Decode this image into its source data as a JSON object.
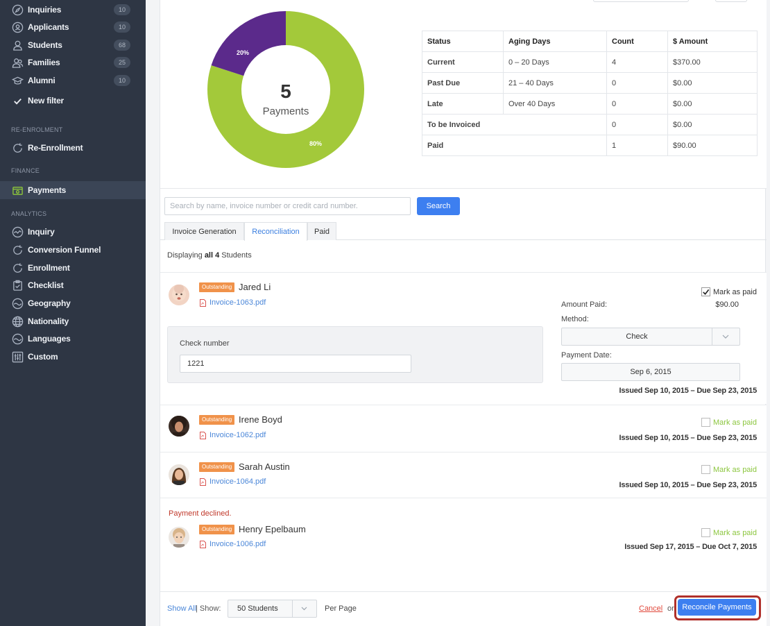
{
  "sidebar": {
    "items": [
      {
        "label": "Inquiries",
        "count": "10",
        "icon": "compass-icon"
      },
      {
        "label": "Applicants",
        "count": "10",
        "icon": "applicant-icon"
      },
      {
        "label": "Students",
        "count": "68",
        "icon": "student-icon"
      },
      {
        "label": "Families",
        "count": "25",
        "icon": "families-icon"
      },
      {
        "label": "Alumni",
        "count": "10",
        "icon": "graduation-cap-icon"
      },
      {
        "label": "New filter",
        "icon": "check-icon"
      }
    ],
    "sections": {
      "reenrolment": "RE-ENROLMENT",
      "finance": "FINANCE",
      "analytics": "ANALYTICS"
    },
    "reenrollment_label": "Re-Enrollment",
    "payments_label": "Payments",
    "analytics_items": [
      {
        "label": "Inquiry",
        "icon": "inquiry-chart-icon"
      },
      {
        "label": "Conversion Funnel",
        "icon": "refresh-icon"
      },
      {
        "label": "Enrollment",
        "icon": "refresh-icon"
      },
      {
        "label": "Checklist",
        "icon": "clipboard-icon"
      },
      {
        "label": "Geography",
        "icon": "wave-icon"
      },
      {
        "label": "Nationality",
        "icon": "globe-icon"
      },
      {
        "label": "Languages",
        "icon": "wave-icon"
      },
      {
        "label": "Custom",
        "icon": "sliders-icon"
      }
    ],
    "active_color": "#8fc93a",
    "background": "#2e3644"
  },
  "summary": {
    "donut": {
      "count": "5",
      "label": "Payments",
      "slices": [
        {
          "label": "80%",
          "value": 80,
          "color": "#a3c93a"
        },
        {
          "label": "20%",
          "value": 20,
          "color": "#5b2a8b"
        }
      ]
    },
    "table": {
      "headers": [
        "Status",
        "Aging Days",
        "Count",
        "$ Amount"
      ],
      "rows": [
        {
          "status": "Current",
          "days": "0 – 20 Days",
          "count": "4",
          "amount": "$370.00"
        },
        {
          "status": "Past Due",
          "days": "21 – 40 Days",
          "count": "0",
          "amount": "$0.00"
        },
        {
          "status": "Late",
          "days": "Over 40 Days",
          "count": "0",
          "amount": "$0.00"
        },
        {
          "status": "To be Invoiced",
          "days": "",
          "count": "0",
          "amount": "$0.00"
        },
        {
          "status": "Paid",
          "days": "",
          "count": "1",
          "amount": "$90.00"
        }
      ]
    }
  },
  "search": {
    "placeholder": "Search by name, invoice number or credit card number.",
    "button": "Search"
  },
  "tabs": [
    "Invoice Generation",
    "Reconciliation",
    "Paid"
  ],
  "displaying": {
    "prefix": "Displaying",
    "bold": "all 4",
    "suffix": "Students"
  },
  "students": [
    {
      "badge": "Outstanding",
      "name": "Jared Li",
      "invoice": "Invoice-1063.pdf",
      "mark_paid": "Mark as paid",
      "checked": true,
      "amount_label": "Amount Paid:",
      "amount": "$90.00",
      "method_label": "Method:",
      "method": "Check",
      "date_label": "Payment Date:",
      "date": "Sep 6, 2015",
      "check_label": "Check number",
      "check_number": "1221",
      "issued": "Issued Sep 10, 2015 – Due Sep 23, 2015"
    },
    {
      "badge": "Outstanding",
      "name": "Irene Boyd",
      "invoice": "Invoice-1062.pdf",
      "mark_paid": "Mark as paid",
      "checked": false,
      "issued": "Issued Sep 10, 2015 – Due Sep 23, 2015"
    },
    {
      "badge": "Outstanding",
      "name": "Sarah Austin",
      "invoice": "Invoice-1064.pdf",
      "mark_paid": "Mark as paid",
      "checked": false,
      "issued": "Issued Sep 10, 2015 – Due Sep 23, 2015"
    },
    {
      "badge": "Outstanding",
      "name": "Henry Epelbaum",
      "invoice": "Invoice-1006.pdf",
      "mark_paid": "Mark as paid",
      "checked": false,
      "notice": "Payment declined.",
      "issued": "Issued Sep 17, 2015 – Due Oct 7, 2015"
    }
  ],
  "footer": {
    "show_all": "Show All",
    "show": "| Show:",
    "per_page_value": "50 Students",
    "per_page": "Per Page",
    "cancel": "Cancel",
    "or": "or",
    "reconcile": "Reconcile Payments"
  }
}
